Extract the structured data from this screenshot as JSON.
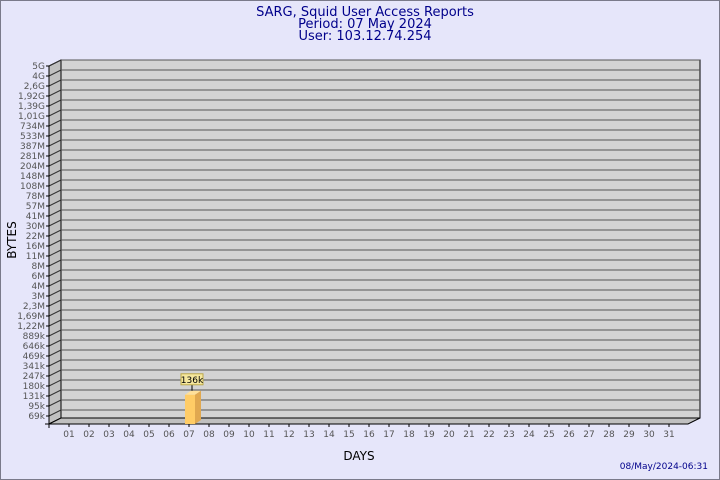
{
  "title": "SARG, Squid User Access Reports",
  "period": "Period: 07 May 2024",
  "user": "User: 103.12.74.254",
  "timestamp": "08/May/2024-06:31",
  "chart_data": {
    "type": "bar",
    "title": "SARG, Squid User Access Reports",
    "xlabel": "DAYS",
    "ylabel": "BYTES",
    "y_scale": "logarithmic",
    "y_tick_labels": [
      "5G",
      "4G",
      "2,6G",
      "1,92G",
      "1,39G",
      "1,01G",
      "734M",
      "533M",
      "387M",
      "281M",
      "204M",
      "148M",
      "108M",
      "78M",
      "57M",
      "41M",
      "30M",
      "22M",
      "16M",
      "11M",
      "8M",
      "6M",
      "4M",
      "3M",
      "2,3M",
      "1,69M",
      "1,22M",
      "889k",
      "646k",
      "469k",
      "341k",
      "247k",
      "180k",
      "131k",
      "95k",
      "69k"
    ],
    "categories": [
      "01",
      "02",
      "03",
      "04",
      "05",
      "06",
      "07",
      "08",
      "09",
      "10",
      "11",
      "12",
      "13",
      "14",
      "15",
      "16",
      "17",
      "18",
      "19",
      "20",
      "21",
      "22",
      "23",
      "24",
      "25",
      "26",
      "27",
      "28",
      "29",
      "30",
      "31"
    ],
    "values": [
      null,
      null,
      null,
      null,
      null,
      null,
      136000,
      null,
      null,
      null,
      null,
      null,
      null,
      null,
      null,
      null,
      null,
      null,
      null,
      null,
      null,
      null,
      null,
      null,
      null,
      null,
      null,
      null,
      null,
      null,
      null
    ],
    "data_labels": {
      "07": "136k"
    },
    "grid": true,
    "colors": {
      "plot_back": "#d3d3d3",
      "side_wall": "#c0c0c0",
      "bar_front": "#ffcc66",
      "bar_side": "#e0a850",
      "bar_top": "#ffe099",
      "label_bg": "#f5e79e",
      "title": "#00008b",
      "background": "#e6e6fa"
    }
  }
}
